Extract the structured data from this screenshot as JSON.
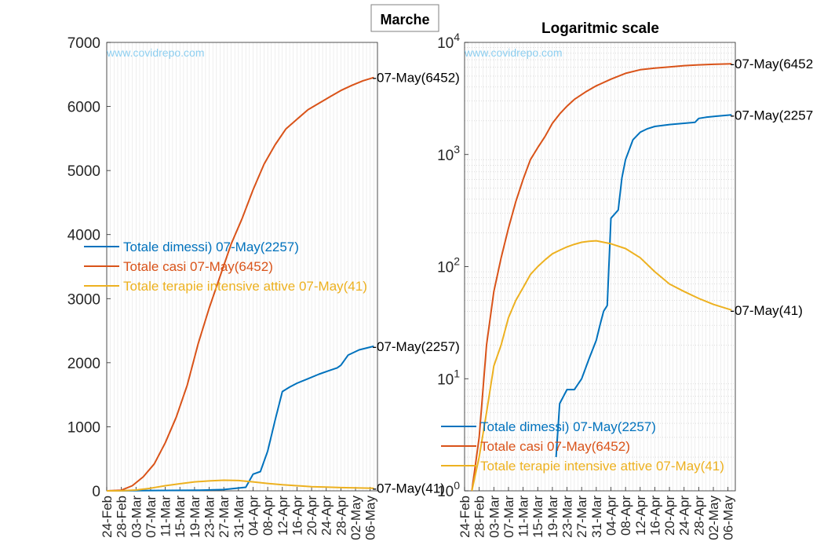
{
  "figure": {
    "title": "Marche",
    "watermark": "www.covidrepo.com"
  },
  "colors": {
    "dimessi": "#0072BD",
    "casi": "#D95319",
    "terapie": "#EDB120",
    "watermark": "#8ECFF0"
  },
  "x_ticks": [
    "24-Feb",
    "28-Feb",
    "03-Mar",
    "07-Mar",
    "11-Mar",
    "15-Mar",
    "19-Mar",
    "23-Mar",
    "27-Mar",
    "31-Mar",
    "04-Apr",
    "08-Apr",
    "12-Apr",
    "16-Apr",
    "20-Apr",
    "24-Apr",
    "28-Apr",
    "02-May",
    "06-May"
  ],
  "chart_data": [
    {
      "type": "line",
      "title": "",
      "xlabel": "",
      "ylabel": "",
      "x_range": [
        "24-Feb",
        "08-May"
      ],
      "ylim": [
        0,
        7000
      ],
      "yticks": [
        0,
        1000,
        2000,
        3000,
        4000,
        5000,
        6000,
        7000
      ],
      "ytick_labels": [
        "0",
        "1000",
        "2000",
        "3000",
        "4000",
        "5000",
        "6000",
        "7000"
      ],
      "grid": "vertical daily lines",
      "legend_position": "left-middle",
      "end_labels": [
        "-07-May(6452)",
        "-07-May(2257)",
        "-07-May(41)"
      ],
      "series": [
        {
          "name": "Totale dimessi) 07-May(2257)",
          "color": "#0072BD",
          "x": [
            "24-Feb",
            "20-Mar",
            "27-Mar",
            "02-Apr",
            "04-Apr",
            "06-Apr",
            "08-Apr",
            "10-Apr",
            "12-Apr",
            "14-Apr",
            "16-Apr",
            "19-Apr",
            "22-Apr",
            "25-Apr",
            "27-Apr",
            "28-Apr",
            "30-Apr",
            "03-May",
            "07-May"
          ],
          "values": [
            0,
            8,
            20,
            55,
            260,
            300,
            620,
            1100,
            1550,
            1620,
            1680,
            1750,
            1820,
            1880,
            1920,
            1960,
            2120,
            2200,
            2257
          ]
        },
        {
          "name": "Totale casi 07-May(6452)",
          "color": "#D95319",
          "x": [
            "24-Feb",
            "28-Feb",
            "02-Mar",
            "05-Mar",
            "08-Mar",
            "11-Mar",
            "14-Mar",
            "17-Mar",
            "20-Mar",
            "23-Mar",
            "26-Mar",
            "29-Mar",
            "01-Apr",
            "04-Apr",
            "07-Apr",
            "10-Apr",
            "13-Apr",
            "16-Apr",
            "19-Apr",
            "22-Apr",
            "25-Apr",
            "28-Apr",
            "01-May",
            "04-May",
            "07-May"
          ],
          "values": [
            0,
            10,
            80,
            220,
            420,
            750,
            1150,
            1650,
            2300,
            2850,
            3350,
            3850,
            4250,
            4700,
            5100,
            5400,
            5650,
            5800,
            5950,
            6050,
            6150,
            6250,
            6330,
            6400,
            6452
          ]
        },
        {
          "name": "Totale terapie intensive attive 07-May(41)",
          "color": "#EDB120",
          "x": [
            "24-Feb",
            "28-Feb",
            "03-Mar",
            "07-Mar",
            "11-Mar",
            "15-Mar",
            "19-Mar",
            "23-Mar",
            "27-Mar",
            "31-Mar",
            "04-Apr",
            "08-Apr",
            "12-Apr",
            "16-Apr",
            "20-Apr",
            "24-Apr",
            "28-Apr",
            "02-May",
            "07-May"
          ],
          "values": [
            0,
            1,
            12,
            40,
            80,
            110,
            140,
            155,
            165,
            160,
            140,
            115,
            95,
            80,
            65,
            58,
            50,
            45,
            41
          ]
        }
      ]
    },
    {
      "type": "line",
      "title": "Logaritmic scale",
      "xlabel": "",
      "ylabel": "",
      "yscale": "log",
      "x_range": [
        "24-Feb",
        "08-May"
      ],
      "ylim": [
        1,
        10000
      ],
      "ytick_labels": [
        "10^0",
        "10^1",
        "10^2",
        "10^3",
        "10^4"
      ],
      "grid": "vertical daily lines and horizontal minor log lines",
      "legend_position": "bottom-left",
      "end_labels": [
        "-07-May(6452)",
        "-07-May(2257)",
        "-07-May(41)"
      ],
      "series": [
        {
          "name": "Totale dimessi) 07-May(2257)",
          "color": "#0072BD",
          "x": [
            "20-Mar",
            "21-Mar",
            "23-Mar",
            "25-Mar",
            "27-Mar",
            "29-Mar",
            "31-Mar",
            "01-Apr",
            "02-Apr",
            "03-Apr",
            "04-Apr",
            "06-Apr",
            "07-Apr",
            "08-Apr",
            "10-Apr",
            "12-Apr",
            "14-Apr",
            "16-Apr",
            "20-Apr",
            "24-Apr",
            "27-Apr",
            "28-Apr",
            "30-Apr",
            "03-May",
            "07-May"
          ],
          "values": [
            2,
            6,
            8,
            8,
            10,
            15,
            22,
            30,
            40,
            45,
            270,
            320,
            620,
            900,
            1350,
            1580,
            1700,
            1780,
            1850,
            1900,
            1940,
            2100,
            2150,
            2200,
            2257
          ]
        },
        {
          "name": "Totale casi 07-May(6452)",
          "color": "#D95319",
          "x": [
            "26-Feb",
            "28-Feb",
            "01-Mar",
            "03-Mar",
            "05-Mar",
            "07-Mar",
            "09-Mar",
            "11-Mar",
            "13-Mar",
            "15-Mar",
            "17-Mar",
            "19-Mar",
            "21-Mar",
            "23-Mar",
            "25-Mar",
            "28-Mar",
            "31-Mar",
            "04-Apr",
            "08-Apr",
            "12-Apr",
            "16-Apr",
            "20-Apr",
            "24-Apr",
            "28-Apr",
            "02-May",
            "07-May"
          ],
          "values": [
            1,
            3,
            20,
            60,
            120,
            220,
            380,
            600,
            900,
            1150,
            1450,
            1900,
            2300,
            2700,
            3100,
            3600,
            4100,
            4700,
            5300,
            5700,
            5900,
            6050,
            6200,
            6300,
            6380,
            6452
          ]
        },
        {
          "name": "Totale terapie intensive attive 07-May(41)",
          "color": "#EDB120",
          "x": [
            "26-Feb",
            "28-Feb",
            "01-Mar",
            "03-Mar",
            "05-Mar",
            "07-Mar",
            "09-Mar",
            "11-Mar",
            "13-Mar",
            "15-Mar",
            "17-Mar",
            "19-Mar",
            "21-Mar",
            "23-Mar",
            "25-Mar",
            "27-Mar",
            "29-Mar",
            "31-Mar",
            "02-Apr",
            "04-Apr",
            "08-Apr",
            "12-Apr",
            "16-Apr",
            "20-Apr",
            "24-Apr",
            "28-Apr",
            "02-May",
            "07-May"
          ],
          "values": [
            1,
            2,
            5,
            13,
            20,
            35,
            50,
            65,
            85,
            100,
            115,
            130,
            140,
            150,
            158,
            165,
            168,
            170,
            165,
            160,
            145,
            120,
            90,
            70,
            60,
            52,
            46,
            41
          ]
        }
      ]
    }
  ]
}
